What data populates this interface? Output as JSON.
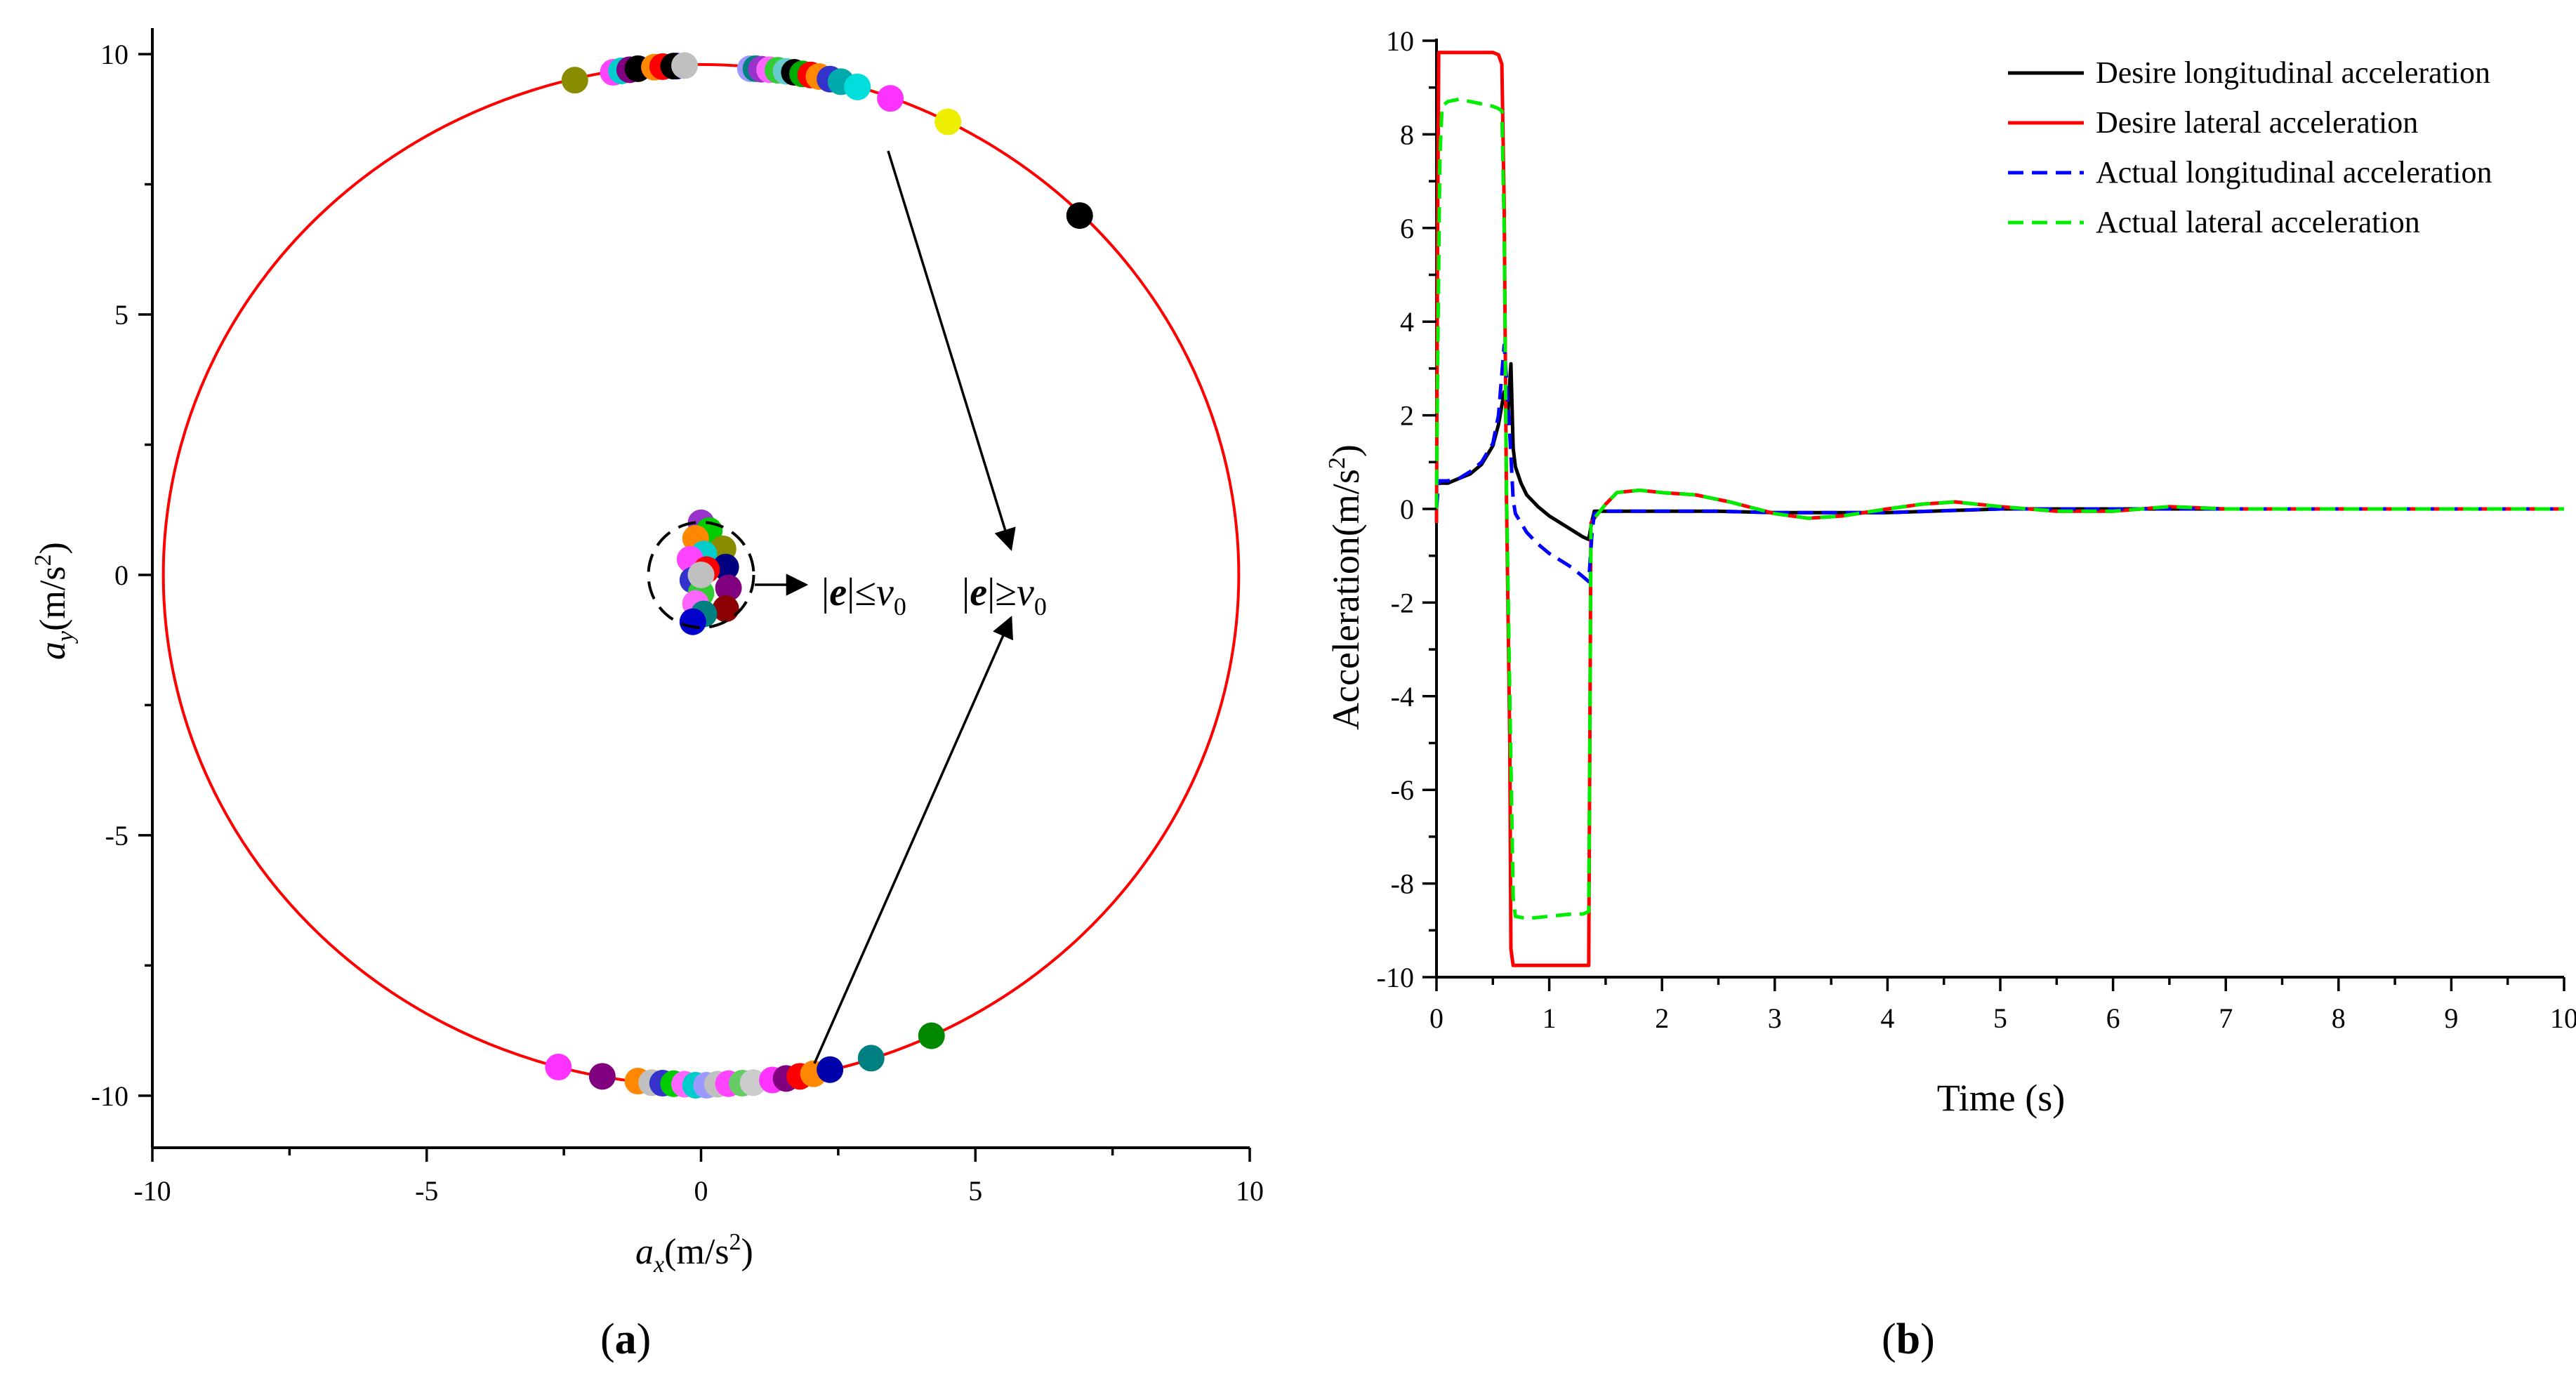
{
  "panel_a": {
    "caption": "a",
    "xlabel_sym": "a",
    "xlabel_sub": "x",
    "xlabel_unit": "(m/s",
    "xlabel_exp": "2",
    "xlabel_close": ")",
    "ylabel_sym": "a",
    "ylabel_sub": "y",
    "ylabel_unit": "(m/s",
    "ylabel_exp": "2",
    "ylabel_close": ")",
    "inner_label_pre": "|",
    "inner_label_e": "e",
    "inner_label_op": "|≤",
    "inner_label_v": "v",
    "inner_label_sub": "0",
    "outer_label_pre": "|",
    "outer_label_e": "e",
    "outer_label_op": "|≥",
    "outer_label_v": "v",
    "outer_label_sub": "0",
    "xticks": [
      "-10",
      "-5",
      "0",
      "5",
      "10"
    ],
    "yticks": [
      "10",
      "5",
      "0",
      "-5",
      "-10"
    ]
  },
  "panel_b": {
    "caption": "b",
    "xlabel": "Time (s)",
    "ylabel_pre": "Acceleration(m/s",
    "ylabel_exp": "2",
    "ylabel_close": ")",
    "xticks": [
      "0",
      "1",
      "2",
      "3",
      "4",
      "5",
      "6",
      "7",
      "8",
      "9",
      "10"
    ],
    "yticks": [
      "10",
      "8",
      "6",
      "4",
      "2",
      "0",
      "-2",
      "-4",
      "-6",
      "-8",
      "-10"
    ],
    "legend": [
      {
        "label": "Desire longitudinal acceleration",
        "color": "#000000",
        "dash": false
      },
      {
        "label": "Desire lateral acceleration",
        "color": "#ff0000",
        "dash": false
      },
      {
        "label": "Actual longitudinal acceleration",
        "color": "#0000ff",
        "dash": true
      },
      {
        "label": "Actual lateral acceleration",
        "color": "#00ee00",
        "dash": true
      }
    ]
  },
  "chart_data": [
    {
      "type": "scatter",
      "title": "",
      "xlabel": "a_x(m/s^2)",
      "ylabel": "a_y(m/s^2)",
      "xlim": [
        -10,
        10
      ],
      "ylim": [
        -11,
        10.5
      ],
      "circle": {
        "center": [
          0,
          0
        ],
        "radius": 9.8,
        "color": "#ff0000"
      },
      "inner_region": {
        "center": [
          0,
          0
        ],
        "radius": 1.0,
        "style": "dashed",
        "label": "|e|≤v0"
      },
      "outer_label": "|e|≥v0",
      "points": [
        {
          "x": -2.3,
          "y": 9.5,
          "color": "#8b8b00"
        },
        {
          "x": -1.6,
          "y": 9.65,
          "color": "#ff44ff"
        },
        {
          "x": -1.45,
          "y": 9.68,
          "color": "#00cccc"
        },
        {
          "x": -1.3,
          "y": 9.7,
          "color": "#800080"
        },
        {
          "x": -1.15,
          "y": 9.72,
          "color": "#000000"
        },
        {
          "x": -0.85,
          "y": 9.75,
          "color": "#ff8800"
        },
        {
          "x": -0.7,
          "y": 9.76,
          "color": "#ff0000"
        },
        {
          "x": -0.45,
          "y": 9.77,
          "color": "#0000cc"
        },
        {
          "x": -0.5,
          "y": 9.77,
          "color": "#000000"
        },
        {
          "x": -0.3,
          "y": 9.78,
          "color": "#c0c0c0"
        },
        {
          "x": 0.9,
          "y": 9.72,
          "color": "#9999ff"
        },
        {
          "x": 1.0,
          "y": 9.72,
          "color": "#008080"
        },
        {
          "x": 1.1,
          "y": 9.71,
          "color": "#9933cc"
        },
        {
          "x": 1.25,
          "y": 9.7,
          "color": "#ff66ff"
        },
        {
          "x": 1.4,
          "y": 9.69,
          "color": "#33cc33"
        },
        {
          "x": 1.55,
          "y": 9.67,
          "color": "#66cccc"
        },
        {
          "x": 1.7,
          "y": 9.65,
          "color": "#000000"
        },
        {
          "x": 1.85,
          "y": 9.62,
          "color": "#00aa00"
        },
        {
          "x": 2.0,
          "y": 9.6,
          "color": "#ff0000"
        },
        {
          "x": 2.15,
          "y": 9.57,
          "color": "#ff8800"
        },
        {
          "x": 2.35,
          "y": 9.52,
          "color": "#3333cc"
        },
        {
          "x": 2.55,
          "y": 9.47,
          "color": "#00aaaa"
        },
        {
          "x": 2.85,
          "y": 9.37,
          "color": "#00dddd"
        },
        {
          "x": 3.45,
          "y": 9.15,
          "color": "#ff33ff"
        },
        {
          "x": 4.5,
          "y": 8.7,
          "color": "#eeee00"
        },
        {
          "x": 6.9,
          "y": 6.9,
          "color": "#000000"
        },
        {
          "x": -2.6,
          "y": -9.45,
          "color": "#ff33ff"
        },
        {
          "x": -1.8,
          "y": -9.63,
          "color": "#800080"
        },
        {
          "x": -1.15,
          "y": -9.72,
          "color": "#ff8800"
        },
        {
          "x": -0.9,
          "y": -9.75,
          "color": "#c0c0c0"
        },
        {
          "x": -0.7,
          "y": -9.76,
          "color": "#3333cc"
        },
        {
          "x": -0.5,
          "y": -9.77,
          "color": "#00cc00"
        },
        {
          "x": -0.3,
          "y": -9.78,
          "color": "#ff66ff"
        },
        {
          "x": -0.1,
          "y": -9.8,
          "color": "#00cccc"
        },
        {
          "x": 0.1,
          "y": -9.8,
          "color": "#9999ff"
        },
        {
          "x": 0.3,
          "y": -9.78,
          "color": "#c0c0c0"
        },
        {
          "x": 0.5,
          "y": -9.77,
          "color": "#ff44ff"
        },
        {
          "x": 0.75,
          "y": -9.76,
          "color": "#66cc66"
        },
        {
          "x": 0.95,
          "y": -9.75,
          "color": "#cccccc"
        },
        {
          "x": 1.3,
          "y": -9.7,
          "color": "#ff33ff"
        },
        {
          "x": 1.55,
          "y": -9.67,
          "color": "#800080"
        },
        {
          "x": 1.8,
          "y": -9.63,
          "color": "#ff0000"
        },
        {
          "x": 2.05,
          "y": -9.58,
          "color": "#ff8800"
        },
        {
          "x": 2.35,
          "y": -9.5,
          "color": "#0000aa"
        },
        {
          "x": 3.1,
          "y": -9.28,
          "color": "#008080"
        },
        {
          "x": 4.2,
          "y": -8.85,
          "color": "#008800"
        },
        {
          "x": 0.0,
          "y": 1.0,
          "color": "#9933cc"
        },
        {
          "x": 0.15,
          "y": 0.85,
          "color": "#00cc00"
        },
        {
          "x": -0.1,
          "y": 0.7,
          "color": "#ff8800"
        },
        {
          "x": 0.4,
          "y": 0.5,
          "color": "#8b8b00"
        },
        {
          "x": 0.05,
          "y": 0.4,
          "color": "#00cccc"
        },
        {
          "x": -0.2,
          "y": 0.3,
          "color": "#ff44ff"
        },
        {
          "x": 0.45,
          "y": 0.15,
          "color": "#000080"
        },
        {
          "x": 0.1,
          "y": 0.1,
          "color": "#ff0000"
        },
        {
          "x": -0.15,
          "y": -0.1,
          "color": "#3333cc"
        },
        {
          "x": 0.5,
          "y": -0.25,
          "color": "#800080"
        },
        {
          "x": 0.0,
          "y": -0.35,
          "color": "#33cc33"
        },
        {
          "x": -0.1,
          "y": -0.55,
          "color": "#ff66ff"
        },
        {
          "x": 0.45,
          "y": -0.65,
          "color": "#8b0000"
        },
        {
          "x": 0.05,
          "y": -0.75,
          "color": "#008080"
        },
        {
          "x": -0.15,
          "y": -0.9,
          "color": "#0000cc"
        },
        {
          "x": 0.0,
          "y": 0.0,
          "color": "#c0c0c0"
        }
      ]
    },
    {
      "type": "line",
      "title": "",
      "xlabel": "Time (s)",
      "ylabel": "Acceleration(m/s^2)",
      "xlim": [
        0,
        10
      ],
      "ylim": [
        -10,
        10
      ],
      "series": [
        {
          "name": "Desire longitudinal acceleration",
          "color": "#000000",
          "dash": false,
          "x": [
            0,
            0.02,
            0.1,
            0.2,
            0.3,
            0.4,
            0.5,
            0.55,
            0.6,
            0.63,
            0.66,
            0.68,
            0.7,
            0.75,
            0.8,
            0.9,
            1.0,
            1.1,
            1.2,
            1.3,
            1.35,
            1.38,
            1.4,
            1.5,
            2.0,
            2.5,
            3.0,
            3.5,
            4.0,
            5.0,
            6.0,
            7.0,
            8.0,
            9.0,
            10.0
          ],
          "y": [
            0.6,
            0.55,
            0.55,
            0.65,
            0.75,
            0.95,
            1.35,
            1.8,
            2.5,
            1.9,
            3.1,
            1.3,
            0.9,
            0.55,
            0.3,
            0.05,
            -0.15,
            -0.3,
            -0.45,
            -0.6,
            -0.65,
            -0.25,
            -0.05,
            -0.05,
            -0.05,
            -0.05,
            -0.08,
            -0.08,
            -0.08,
            0.0,
            0.0,
            0.0,
            0.0,
            0.0,
            0.0
          ]
        },
        {
          "name": "Desire lateral acceleration",
          "color": "#ff0000",
          "dash": false,
          "x": [
            0,
            0.01,
            0.02,
            0.5,
            0.55,
            0.58,
            0.6,
            0.62,
            0.65,
            0.66,
            0.68,
            0.7,
            0.8,
            1.0,
            1.2,
            1.3,
            1.35,
            1.36,
            1.37,
            1.4,
            1.5,
            1.6,
            1.8,
            2.0,
            2.3,
            2.6,
            3.0,
            3.3,
            3.6,
            4.0,
            4.3,
            4.6,
            5.0,
            5.5,
            6.0,
            6.5,
            7.0,
            7.5,
            8.0,
            9.0,
            10.0
          ],
          "y": [
            -0.3,
            6.0,
            9.75,
            9.75,
            9.7,
            9.5,
            6.5,
            0.3,
            -5.0,
            -9.4,
            -9.75,
            -9.75,
            -9.75,
            -9.75,
            -9.75,
            -9.75,
            -9.75,
            -5.0,
            -0.3,
            -0.2,
            0.1,
            0.35,
            0.4,
            0.35,
            0.3,
            0.15,
            -0.1,
            -0.2,
            -0.15,
            0.0,
            0.1,
            0.15,
            0.05,
            -0.05,
            -0.05,
            0.05,
            0.0,
            0.0,
            0.0,
            0.0,
            0.0
          ]
        },
        {
          "name": "Actual longitudinal acceleration",
          "color": "#0000ff",
          "dash": true,
          "x": [
            0,
            0.02,
            0.1,
            0.2,
            0.3,
            0.4,
            0.5,
            0.55,
            0.6,
            0.62,
            0.65,
            0.68,
            0.7,
            0.75,
            0.8,
            0.9,
            1.0,
            1.1,
            1.2,
            1.3,
            1.35,
            1.38,
            1.4,
            1.5,
            2.0,
            2.5,
            3.0,
            3.5,
            4.0,
            5.0,
            6.0,
            7.0,
            8.0,
            9.0,
            10.0
          ],
          "y": [
            0.0,
            0.6,
            0.6,
            0.65,
            0.8,
            1.0,
            1.4,
            2.0,
            3.5,
            2.8,
            1.6,
            0.2,
            -0.1,
            -0.3,
            -0.5,
            -0.75,
            -0.95,
            -1.1,
            -1.25,
            -1.45,
            -1.55,
            -0.5,
            -0.1,
            -0.05,
            -0.05,
            -0.05,
            -0.08,
            -0.08,
            -0.08,
            0.0,
            0.0,
            0.0,
            0.0,
            0.0,
            0.0
          ]
        },
        {
          "name": "Actual lateral acceleration",
          "color": "#00ee00",
          "dash": true,
          "x": [
            0,
            0.01,
            0.03,
            0.05,
            0.1,
            0.2,
            0.3,
            0.4,
            0.5,
            0.55,
            0.58,
            0.6,
            0.62,
            0.65,
            0.68,
            0.7,
            0.8,
            1.0,
            1.2,
            1.3,
            1.35,
            1.36,
            1.37,
            1.4,
            1.5,
            1.6,
            1.8,
            2.0,
            2.3,
            2.6,
            3.0,
            3.3,
            3.6,
            4.0,
            4.3,
            4.6,
            5.0,
            5.5,
            6.0,
            6.5,
            7.0,
            7.5,
            8.0,
            9.0,
            10.0
          ],
          "y": [
            0.0,
            3.0,
            7.5,
            8.6,
            8.7,
            8.75,
            8.7,
            8.65,
            8.6,
            8.55,
            8.5,
            6.0,
            0.5,
            -4.0,
            -8.3,
            -8.7,
            -8.75,
            -8.7,
            -8.65,
            -8.65,
            -8.6,
            -5.0,
            -0.3,
            -0.2,
            0.1,
            0.35,
            0.4,
            0.35,
            0.3,
            0.15,
            -0.1,
            -0.2,
            -0.15,
            0.0,
            0.1,
            0.15,
            0.05,
            -0.05,
            -0.05,
            0.05,
            0.0,
            0.0,
            0.0,
            0.0,
            0.0
          ]
        }
      ]
    }
  ]
}
